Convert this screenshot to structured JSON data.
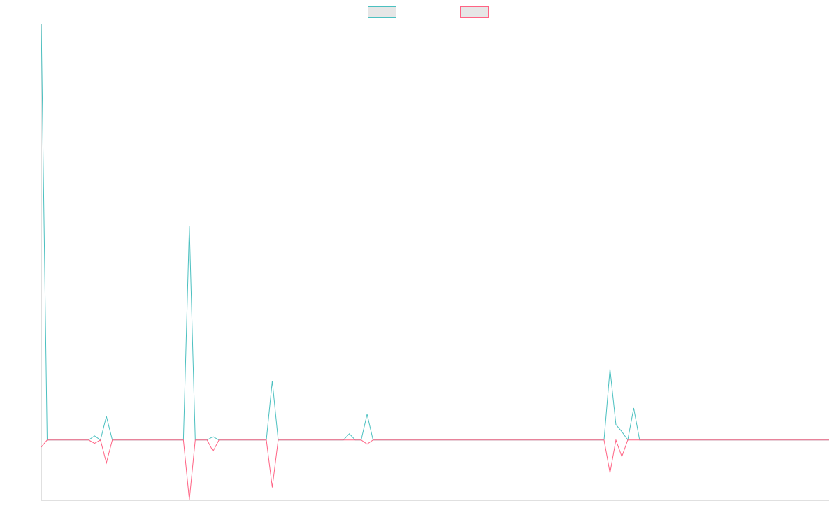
{
  "chart_data": {
    "type": "line",
    "series": [
      {
        "color": "#4bc0c0",
        "values": [
          1,
          0,
          0,
          0,
          0,
          0,
          0,
          0,
          0,
          0.01,
          0,
          0.057,
          0,
          0,
          0,
          0,
          0,
          0,
          0,
          0,
          0,
          0,
          0,
          0,
          0,
          0.514,
          0,
          0,
          0,
          0.008,
          0,
          0,
          0,
          0,
          0,
          0,
          0,
          0,
          0,
          0.142,
          0,
          0,
          0,
          0,
          0,
          0,
          0,
          0,
          0,
          0,
          0,
          0,
          0.015,
          0,
          0,
          0.062,
          0,
          0,
          0,
          0,
          0,
          0,
          0,
          0,
          0,
          0,
          0,
          0,
          0,
          0,
          0,
          0,
          0,
          0,
          0,
          0,
          0,
          0,
          0,
          0,
          0,
          0,
          0,
          0,
          0,
          0,
          0,
          0,
          0,
          0,
          0,
          0,
          0,
          0,
          0,
          0,
          0.171,
          0.037,
          0.02,
          0,
          0.077,
          0,
          0,
          0,
          0,
          0,
          0,
          0,
          0,
          0,
          0,
          0,
          0,
          0,
          0,
          0,
          0,
          0,
          0,
          0,
          0,
          0,
          0,
          0,
          0,
          0,
          0,
          0,
          0,
          0,
          0,
          0,
          0,
          0
        ]
      },
      {
        "color": "#ff6384",
        "values": [
          -0.017,
          0,
          0,
          0,
          0,
          0,
          0,
          0,
          0,
          -0.008,
          0,
          -0.055,
          0,
          0,
          0,
          0,
          0,
          0,
          0,
          0,
          0,
          0,
          0,
          0,
          0,
          -0.144,
          0,
          0,
          0,
          -0.027,
          0,
          0,
          0,
          0,
          0,
          0,
          0,
          0,
          0,
          -0.114,
          0,
          0,
          0,
          0,
          0,
          0,
          0,
          0,
          0,
          0,
          0,
          0,
          0,
          0,
          0,
          -0.01,
          0,
          0,
          0,
          0,
          0,
          0,
          0,
          0,
          0,
          0,
          0,
          0,
          0,
          0,
          0,
          0,
          0,
          0,
          0,
          0,
          0,
          0,
          0,
          0,
          0,
          0,
          0,
          0,
          0,
          0,
          0,
          0,
          0,
          0,
          0,
          0,
          0,
          0,
          0,
          0,
          -0.079,
          0,
          -0.04,
          0,
          0,
          0,
          0,
          0,
          0,
          0,
          0,
          0,
          0,
          0,
          0,
          0,
          0,
          0,
          0,
          0,
          0,
          0,
          0,
          0,
          0,
          0,
          0,
          0,
          0,
          0,
          0,
          0,
          0,
          0,
          0,
          0,
          0,
          0
        ]
      }
    ],
    "ylim": [
      -0.145,
      1
    ]
  }
}
